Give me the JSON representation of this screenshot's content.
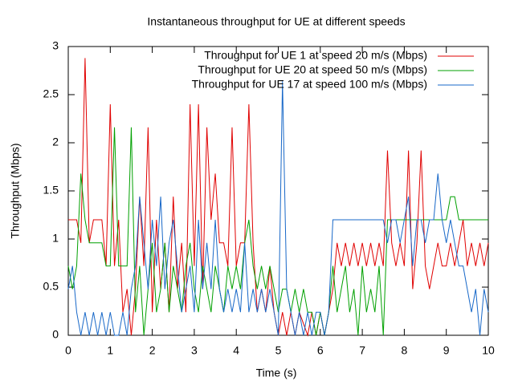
{
  "chart_data": {
    "type": "line",
    "title": "Instantaneous throughput for UE at different speeds",
    "x_label": "Time (s)",
    "y_label": "Throughput (Mbps)",
    "xlim": [
      0,
      10
    ],
    "ylim": [
      0,
      3
    ],
    "xticks": [
      0,
      1,
      2,
      3,
      4,
      5,
      6,
      7,
      8,
      9,
      10
    ],
    "yticks": [
      0,
      0.5,
      1,
      1.5,
      2,
      2.5,
      3
    ],
    "grid": false,
    "legend": "top-right",
    "x": [
      0,
      0.1,
      0.2,
      0.3,
      0.4,
      0.5,
      0.6,
      0.7,
      0.8,
      0.9,
      1,
      1.1,
      1.2,
      1.3,
      1.4,
      1.5,
      1.6,
      1.7,
      1.8,
      1.9,
      2,
      2.1,
      2.2,
      2.3,
      2.4,
      2.5,
      2.6,
      2.7,
      2.8,
      2.9,
      3,
      3.1,
      3.2,
      3.3,
      3.4,
      3.5,
      3.6,
      3.7,
      3.8,
      3.9,
      4,
      4.1,
      4.2,
      4.3,
      4.4,
      4.5,
      4.6,
      4.7,
      4.8,
      4.9,
      5,
      5.1,
      5.2,
      5.3,
      5.4,
      5.5,
      5.6,
      5.7,
      5.8,
      5.9,
      6,
      6.1,
      6.2,
      6.3,
      6.4,
      6.5,
      6.6,
      6.7,
      6.8,
      6.9,
      7,
      7.1,
      7.2,
      7.3,
      7.4,
      7.5,
      7.6,
      7.7,
      7.8,
      7.9,
      8,
      8.1,
      8.2,
      8.3,
      8.4,
      8.5,
      8.6,
      8.7,
      8.8,
      8.9,
      9,
      9.1,
      9.2,
      9.3,
      9.4,
      9.5,
      9.6,
      9.7,
      9.8,
      9.9,
      10
    ],
    "series": [
      {
        "name": "Throughput for UE 1 at speed 20 m/s (Mbps)",
        "color": "#e00000",
        "values": [
          1.2,
          1.2,
          1.2,
          0.96,
          2.88,
          0.96,
          1.2,
          1.2,
          1.2,
          0.72,
          2.4,
          0.72,
          1.2,
          0.24,
          0.48,
          0,
          0.48,
          1.44,
          0.72,
          2.16,
          0.24,
          1.2,
          0.48,
          0.96,
          0.24,
          1.44,
          0.48,
          0.96,
          0.24,
          2.4,
          0.72,
          2.4,
          0.48,
          2.16,
          1.2,
          1.68,
          0.96,
          0.96,
          0.72,
          2.16,
          0.72,
          0.96,
          0.96,
          2.4,
          0.96,
          0.24,
          0.48,
          0.24,
          0.72,
          0.24,
          0,
          0.24,
          0,
          0.24,
          0,
          0.24,
          0.12,
          0,
          0.24,
          0,
          0.24,
          0,
          0.24,
          0.48,
          0.96,
          0.72,
          0.96,
          0.72,
          0.96,
          0.72,
          0.96,
          0.72,
          0.96,
          0.72,
          0.96,
          0.72,
          1.92,
          0.96,
          0.72,
          0.96,
          0.72,
          1.92,
          0.48,
          0.96,
          1.92,
          0.72,
          0.48,
          0.72,
          0.96,
          0.72,
          0.72,
          0.96,
          0.72,
          0.96,
          1.2,
          0.72,
          0.96,
          0.72,
          0.96,
          0.72,
          0.96
        ]
      },
      {
        "name": "Throughput for UE 20 at speed 50 m/s (Mbps)",
        "color": "#00a000",
        "values": [
          0.72,
          0.48,
          0.72,
          1.68,
          1.2,
          0.96,
          0.96,
          0.96,
          0.96,
          0.72,
          0.72,
          2.16,
          0.72,
          0.72,
          0.72,
          2.16,
          0.24,
          0.72,
          0,
          0.48,
          0.96,
          0.24,
          0.48,
          0.96,
          0.24,
          0.72,
          0.48,
          0.24,
          0.72,
          0.96,
          0.48,
          0.24,
          0.72,
          0.48,
          0.24,
          0.72,
          0.48,
          0.24,
          0.72,
          0.48,
          0.72,
          0.48,
          0.96,
          1.2,
          0.72,
          0.48,
          0.72,
          0.48,
          0.72,
          0.48,
          0.24,
          0.48,
          0.48,
          0.24,
          0.48,
          0.24,
          0.48,
          0.24,
          0.24,
          0,
          0.24,
          0,
          0.24,
          0.72,
          0.24,
          0.48,
          0.72,
          0.24,
          0.48,
          0,
          0.72,
          0.24,
          0.48,
          0.24,
          0.72,
          0,
          1.2,
          1.2,
          1.2,
          1.2,
          1.2,
          1.2,
          1.2,
          1.2,
          1.2,
          1.2,
          1.2,
          1.2,
          1.2,
          1.2,
          1.2,
          1.44,
          1.44,
          1.2,
          1.2,
          1.2,
          1.2,
          1.2,
          1.2,
          1.2,
          1.2
        ]
      },
      {
        "name": "Throughput for UE 17 at speed 100 m/s (Mbps)",
        "color": "#1868c8",
        "values": [
          0.48,
          0.72,
          0.24,
          0,
          0.24,
          0,
          0.24,
          0,
          0.24,
          0,
          0.24,
          0,
          0,
          0.24,
          0,
          0.48,
          0.72,
          1.44,
          0.96,
          0.48,
          1.2,
          0.72,
          1.44,
          0.48,
          0.96,
          1.2,
          0.72,
          0.24,
          0.48,
          0.72,
          0.24,
          1.2,
          0.48,
          0.96,
          0.48,
          1.2,
          0.48,
          0.24,
          0.48,
          0.24,
          0.48,
          0.24,
          0.96,
          0.24,
          0.48,
          0.24,
          0.48,
          0.24,
          0.48,
          0.24,
          0,
          2.64,
          0.48,
          0.24,
          0,
          0.24,
          0,
          0.24,
          0,
          0.24,
          0.24,
          0,
          0.24,
          1.2,
          1.2,
          1.2,
          1.2,
          1.2,
          1.2,
          1.2,
          1.2,
          1.2,
          1.2,
          1.2,
          1.2,
          1.2,
          0.96,
          1.2,
          1.2,
          0.96,
          1.2,
          1.44,
          0.72,
          1.2,
          1.2,
          0.96,
          1.2,
          1.2,
          1.68,
          1.2,
          0.96,
          1.2,
          0.96,
          0.72,
          0.72,
          0.48,
          0.24,
          0.48,
          0,
          0.48,
          0.24
        ]
      }
    ]
  }
}
